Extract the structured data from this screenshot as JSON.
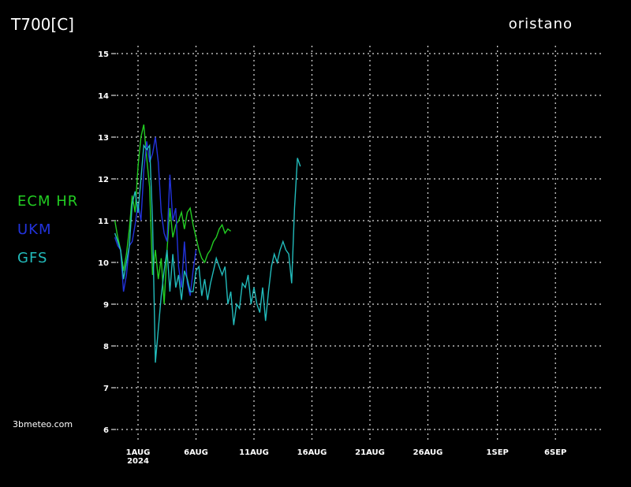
{
  "chart_data": {
    "type": "line",
    "title": "T700[C]",
    "location": "oristano",
    "watermark": "3bmeteo.com",
    "year_label": "2024",
    "legend": "left",
    "grid": true,
    "xlim": [
      -1,
      41
    ],
    "ylim": [
      6,
      15
    ],
    "yticks": [
      6,
      7,
      8,
      9,
      10,
      11,
      12,
      13,
      14,
      15
    ],
    "xticks": [
      {
        "value": 1,
        "label": "1AUG"
      },
      {
        "value": 6,
        "label": "6AUG"
      },
      {
        "value": 11,
        "label": "11AUG"
      },
      {
        "value": 16,
        "label": "16AUG"
      },
      {
        "value": 21,
        "label": "21AUG"
      },
      {
        "value": 26,
        "label": "26AUG"
      },
      {
        "value": 32,
        "label": "1SEP"
      },
      {
        "value": 37,
        "label": "6SEP"
      }
    ],
    "x": [
      -1,
      -0.75,
      -0.5,
      -0.25,
      0,
      0.25,
      0.5,
      0.75,
      1,
      1.25,
      1.5,
      1.75,
      2,
      2.25,
      2.5,
      2.75,
      3,
      3.25,
      3.5,
      3.75,
      4,
      4.25,
      4.5,
      4.75,
      5,
      5.25,
      5.5,
      5.75,
      6,
      6.25,
      6.5,
      6.75,
      7,
      7.25,
      7.5,
      7.75,
      8,
      8.25,
      8.5,
      8.75,
      9,
      9.25,
      9.5,
      9.75,
      10,
      10.25,
      10.5,
      10.75,
      11,
      11.25,
      11.5,
      11.75,
      12,
      12.25,
      12.5,
      12.75,
      13,
      13.25,
      13.5,
      13.75,
      14,
      14.25,
      14.5,
      14.75,
      15
    ],
    "series": [
      {
        "name": "ECM HR",
        "color": "#22cc22",
        "values": [
          11.0,
          10.6,
          10.3,
          9.8,
          10.2,
          10.8,
          11.6,
          11.2,
          12.3,
          13.0,
          13.3,
          12.5,
          11.8,
          9.7,
          10.3,
          9.6,
          10.1,
          9.0,
          10.3,
          11.3,
          10.6,
          10.9,
          11.0,
          11.2,
          10.8,
          11.2,
          11.3,
          10.9,
          10.6,
          10.3,
          10.1,
          10.0,
          10.2,
          10.3,
          10.5,
          10.6,
          10.8,
          10.9,
          10.7,
          10.8,
          10.75,
          null,
          null,
          null,
          null,
          null,
          null,
          null,
          null,
          null,
          null,
          null,
          null,
          null,
          null,
          null,
          null,
          null,
          null,
          null,
          null,
          null,
          null,
          null,
          null
        ]
      },
      {
        "name": "UKM",
        "color": "#2233dd",
        "values": [
          10.6,
          10.4,
          10.3,
          9.3,
          9.7,
          10.4,
          10.5,
          10.9,
          11.4,
          11.0,
          12.2,
          12.9,
          12.4,
          12.6,
          13.0,
          12.4,
          11.2,
          10.7,
          10.5,
          12.1,
          11.0,
          11.3,
          9.9,
          9.4,
          10.5,
          9.5,
          9.2,
          9.8,
          10.3,
          null,
          null,
          null,
          null,
          null,
          null,
          null,
          null,
          null,
          null,
          null,
          null,
          null,
          null,
          null,
          null,
          null,
          null,
          null,
          null,
          null,
          null,
          null,
          null,
          null,
          null,
          null,
          null,
          null,
          null,
          null,
          null,
          null,
          null,
          null,
          null
        ]
      },
      {
        "name": "GFS",
        "color": "#22bbbb",
        "values": [
          10.7,
          10.5,
          10.3,
          9.6,
          10.0,
          10.4,
          11.4,
          11.7,
          11.2,
          12.0,
          12.8,
          12.7,
          12.8,
          11.0,
          7.6,
          8.4,
          9.2,
          9.8,
          10.3,
          9.3,
          10.2,
          9.4,
          9.7,
          9.1,
          9.8,
          9.6,
          9.3,
          9.3,
          9.8,
          9.9,
          9.2,
          9.6,
          9.1,
          9.5,
          9.8,
          10.1,
          9.9,
          9.7,
          9.9,
          9.0,
          9.3,
          8.5,
          9.0,
          8.9,
          9.5,
          9.4,
          9.7,
          9.0,
          9.4,
          9.0,
          8.8,
          9.4,
          8.6,
          9.3,
          9.9,
          10.2,
          10.0,
          10.3,
          10.5,
          10.3,
          10.2,
          9.5,
          11.3,
          12.5,
          12.3
        ]
      }
    ]
  }
}
